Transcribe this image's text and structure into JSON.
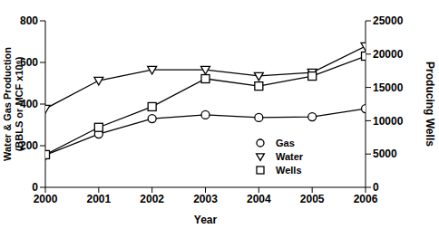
{
  "chart_data": {
    "type": "line",
    "xlabel": "Year",
    "ylabel": "Water & Gas Production (BBLS or MCF x10⁶)",
    "y2label": "Producing Wells",
    "x": [
      2000,
      2001,
      2002,
      2003,
      2004,
      2005,
      2006
    ],
    "xlim": [
      2000,
      2006
    ],
    "xticks": [
      2000,
      2001,
      2002,
      2003,
      2004,
      2005,
      2006
    ],
    "ylim": [
      0,
      800
    ],
    "yticks": [
      0,
      200,
      400,
      600,
      800
    ],
    "y2lim": [
      0,
      25000
    ],
    "y2ticks": [
      0,
      5000,
      10000,
      15000,
      20000,
      25000
    ],
    "legend": "lower right",
    "grid": false,
    "series": [
      {
        "name": "Gas",
        "color": "#000000",
        "marker": "circle",
        "values": [
          155,
          256,
          330,
          348,
          335,
          339,
          378
        ]
      },
      {
        "name": "Water",
        "color": "#000000",
        "marker": "triangle-down",
        "values": [
          378,
          513,
          565,
          565,
          535,
          552,
          678
        ]
      },
      {
        "name": "Wells",
        "color": "#000000",
        "marker": "square",
        "axis": "y2",
        "values": [
          4900,
          9000,
          12100,
          16300,
          15200,
          16700,
          19700
        ]
      }
    ]
  }
}
